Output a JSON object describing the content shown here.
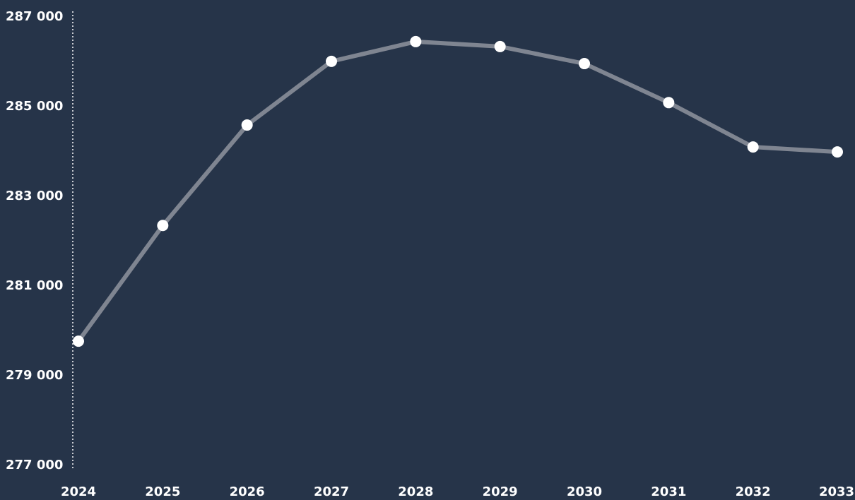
{
  "chart_data": {
    "type": "line",
    "categories": [
      "2024",
      "2025",
      "2026",
      "2027",
      "2028",
      "2029",
      "2030",
      "2031",
      "2032",
      "2033"
    ],
    "series": [
      {
        "color": "#7f8591",
        "values": [
          279770,
          282350,
          284590,
          286010,
          286450,
          286340,
          285960,
          285090,
          284100,
          283990
        ]
      }
    ],
    "ylim": [
      277000,
      287000
    ],
    "yticks": [
      {
        "value": 277000,
        "label": "277 000"
      },
      {
        "value": 279000,
        "label": "279 000"
      },
      {
        "value": 281000,
        "label": "281 000"
      },
      {
        "value": 283000,
        "label": "283 000"
      },
      {
        "value": 285000,
        "label": "285 000"
      },
      {
        "value": 287000,
        "label": "287 000"
      }
    ],
    "marker_color": "#ffffff"
  }
}
